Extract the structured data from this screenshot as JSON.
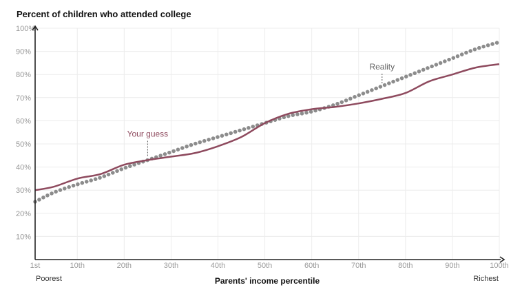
{
  "chart_data": {
    "type": "line",
    "title": "Percent of children who attended college",
    "xlabel": "Parents' income percentile",
    "ylabel": "",
    "xlim": [
      1,
      100
    ],
    "ylim": [
      0,
      100
    ],
    "grid": true,
    "x_ticks": [
      1,
      10,
      20,
      30,
      40,
      50,
      60,
      70,
      80,
      90,
      100
    ],
    "x_tick_labels": [
      "1st",
      "10th",
      "20th",
      "30th",
      "40th",
      "50th",
      "60th",
      "70th",
      "80th",
      "90th",
      "100th"
    ],
    "y_ticks": [
      10,
      20,
      30,
      40,
      50,
      60,
      70,
      80,
      90,
      100
    ],
    "y_tick_labels": [
      "10%",
      "20%",
      "30%",
      "40%",
      "50%",
      "60%",
      "70%",
      "80%",
      "90%",
      "100%"
    ],
    "x_end_labels": {
      "left": "Poorest",
      "right": "Richest"
    },
    "series": [
      {
        "name": "Your guess",
        "style": "solid",
        "color": "#8e4a5e",
        "x": [
          1,
          5,
          10,
          15,
          20,
          25,
          30,
          35,
          40,
          45,
          50,
          55,
          60,
          65,
          70,
          75,
          80,
          85,
          90,
          95,
          100
        ],
        "y": [
          30,
          31.5,
          35,
          37,
          41,
          43,
          44.5,
          46,
          49,
          53,
          59,
          63,
          65,
          66,
          67.5,
          69.5,
          72,
          77,
          80,
          83,
          84.5
        ]
      },
      {
        "name": "Reality",
        "style": "dotted",
        "color": "#8c8c8c",
        "x": [
          1,
          5,
          10,
          15,
          20,
          25,
          30,
          35,
          40,
          45,
          50,
          55,
          60,
          65,
          70,
          75,
          80,
          85,
          90,
          95,
          100
        ],
        "y": [
          25,
          29,
          32.5,
          35.5,
          39.5,
          43,
          46.5,
          50,
          53,
          56,
          59,
          62,
          64,
          67,
          71,
          75,
          79,
          83,
          87,
          91,
          94
        ]
      }
    ],
    "annotations": [
      {
        "text": "Your guess",
        "x": 25,
        "y": 43,
        "color": "#8e4a5e"
      },
      {
        "text": "Reality",
        "x": 75,
        "y": 75,
        "color": "#666666"
      }
    ]
  }
}
